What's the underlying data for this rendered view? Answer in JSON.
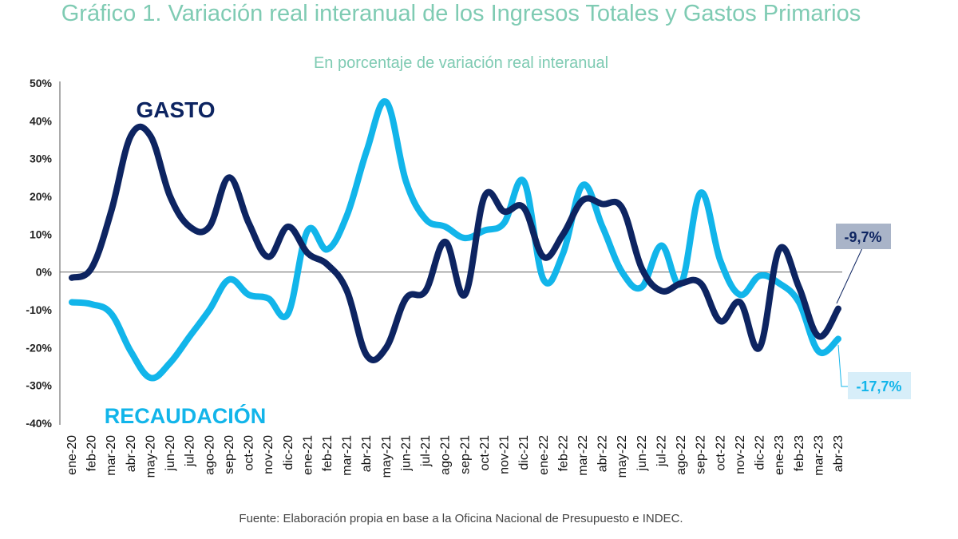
{
  "header": {
    "title": "Gráfico 1. Variación real interanual de los Ingresos Totales y Gastos Primarios",
    "subtitle": "En porcentaje de variación real interanual"
  },
  "footer": {
    "source": "Fuente: Elaboración propia en base a la Oficina Nacional de Presupuesto e INDEC."
  },
  "colors": {
    "gasto": "#0d2461",
    "recaudacion": "#12b5ea",
    "title": "#7fcbb3",
    "label_gasto_bg": "#a9b4c8",
    "label_recaudacion_bg": "#d7eef9"
  },
  "chart_data": {
    "type": "line",
    "ylim": [
      -40,
      50
    ],
    "yticks": [
      -40,
      -30,
      -20,
      -10,
      0,
      10,
      20,
      30,
      40,
      50
    ],
    "ytick_labels": [
      "-40%",
      "-30%",
      "-20%",
      "-10%",
      "0%",
      "10%",
      "20%",
      "30%",
      "40%",
      "50%"
    ],
    "grid": false,
    "zero_line": true,
    "categories": [
      "ene-20",
      "feb-20",
      "mar-20",
      "abr-20",
      "may-20",
      "jun-20",
      "jul-20",
      "ago-20",
      "sep-20",
      "oct-20",
      "nov-20",
      "dic-20",
      "ene-21",
      "feb-21",
      "mar-21",
      "abr-21",
      "may-21",
      "jun-21",
      "jul-21",
      "ago-21",
      "sep-21",
      "oct-21",
      "nov-21",
      "dic-21",
      "ene-22",
      "feb-22",
      "mar-22",
      "abr-22",
      "may-22",
      "jun-22",
      "jul-22",
      "ago-22",
      "sep-22",
      "oct-22",
      "nov-22",
      "dic-22",
      "ene-23",
      "feb-23",
      "mar-23",
      "abr-23"
    ],
    "series": [
      {
        "name": "GASTO",
        "values": [
          -1.5,
          1,
          16,
          36,
          36,
          20,
          12,
          12,
          25,
          13,
          4,
          12,
          5,
          2,
          -5,
          -22,
          -20,
          -7,
          -5,
          8,
          -6,
          20,
          16,
          17,
          4,
          10,
          19,
          18,
          17,
          1,
          -5,
          -3,
          -3,
          -13,
          -8,
          -20,
          6,
          -4,
          -17,
          -9.7
        ]
      },
      {
        "name": "RECAUDACIÓN",
        "values": [
          -8,
          -8.5,
          -11,
          -21,
          -28,
          -24,
          -17,
          -10,
          -2,
          -6,
          -7,
          -11,
          11,
          6,
          15,
          32,
          45,
          24,
          14,
          12,
          9,
          11,
          13,
          24,
          -2,
          5,
          23,
          12,
          0,
          -4,
          7,
          -3,
          21,
          3,
          -6,
          -1,
          -3,
          -8,
          -21,
          -17.7
        ]
      }
    ],
    "labels": {
      "gasto_name": "GASTO",
      "recaudacion_name": "RECAUDACIÓN",
      "gasto_last": "-9,7%",
      "recaudacion_last": "-17,7%"
    }
  }
}
